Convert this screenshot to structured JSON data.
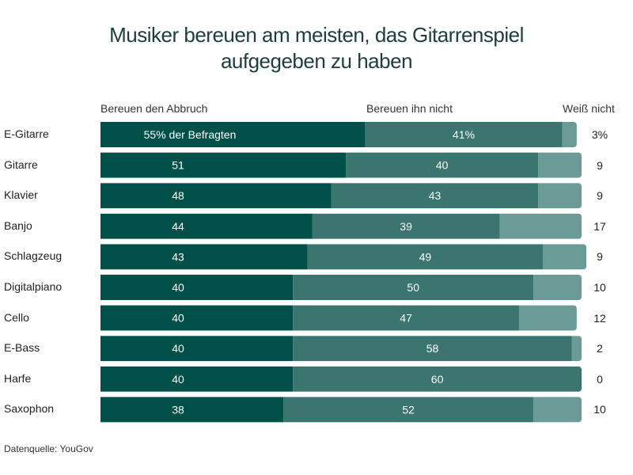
{
  "chart_data": {
    "type": "bar",
    "orientation": "horizontal",
    "stacked": true,
    "title": "Musiker bereuen am meisten, das Gitarrenspiel aufgegeben zu haben",
    "title_lines": [
      "Musiker bereuen am meisten, das Gitarrenspiel",
      "aufgegeben zu haben"
    ],
    "categories": [
      "E-Gitarre",
      "Gitarre",
      "Klavier",
      "Banjo",
      "Schlagzeug",
      "Digitalpiano",
      "Cello",
      "E-Bass",
      "Harfe",
      "Saxophon"
    ],
    "series": [
      {
        "name": "Bereuen den Abbruch",
        "values": [
          55,
          51,
          48,
          44,
          43,
          40,
          40,
          40,
          40,
          38
        ],
        "color": "#00504a"
      },
      {
        "name": "Bereuen ihn nicht",
        "values": [
          41,
          40,
          43,
          39,
          49,
          50,
          47,
          58,
          60,
          52
        ],
        "color": "#3a756f"
      },
      {
        "name": "Weiß nicht",
        "values": [
          3,
          9,
          9,
          17,
          9,
          10,
          12,
          2,
          0,
          10
        ],
        "color": "#6b9b96"
      }
    ],
    "first_row_labels": [
      "55% der Befragten",
      "41%",
      "3%"
    ],
    "unit": "%",
    "xlim": [
      0,
      100
    ],
    "grid": false,
    "legend": "top"
  },
  "source": "Datenquelle: YouGov"
}
